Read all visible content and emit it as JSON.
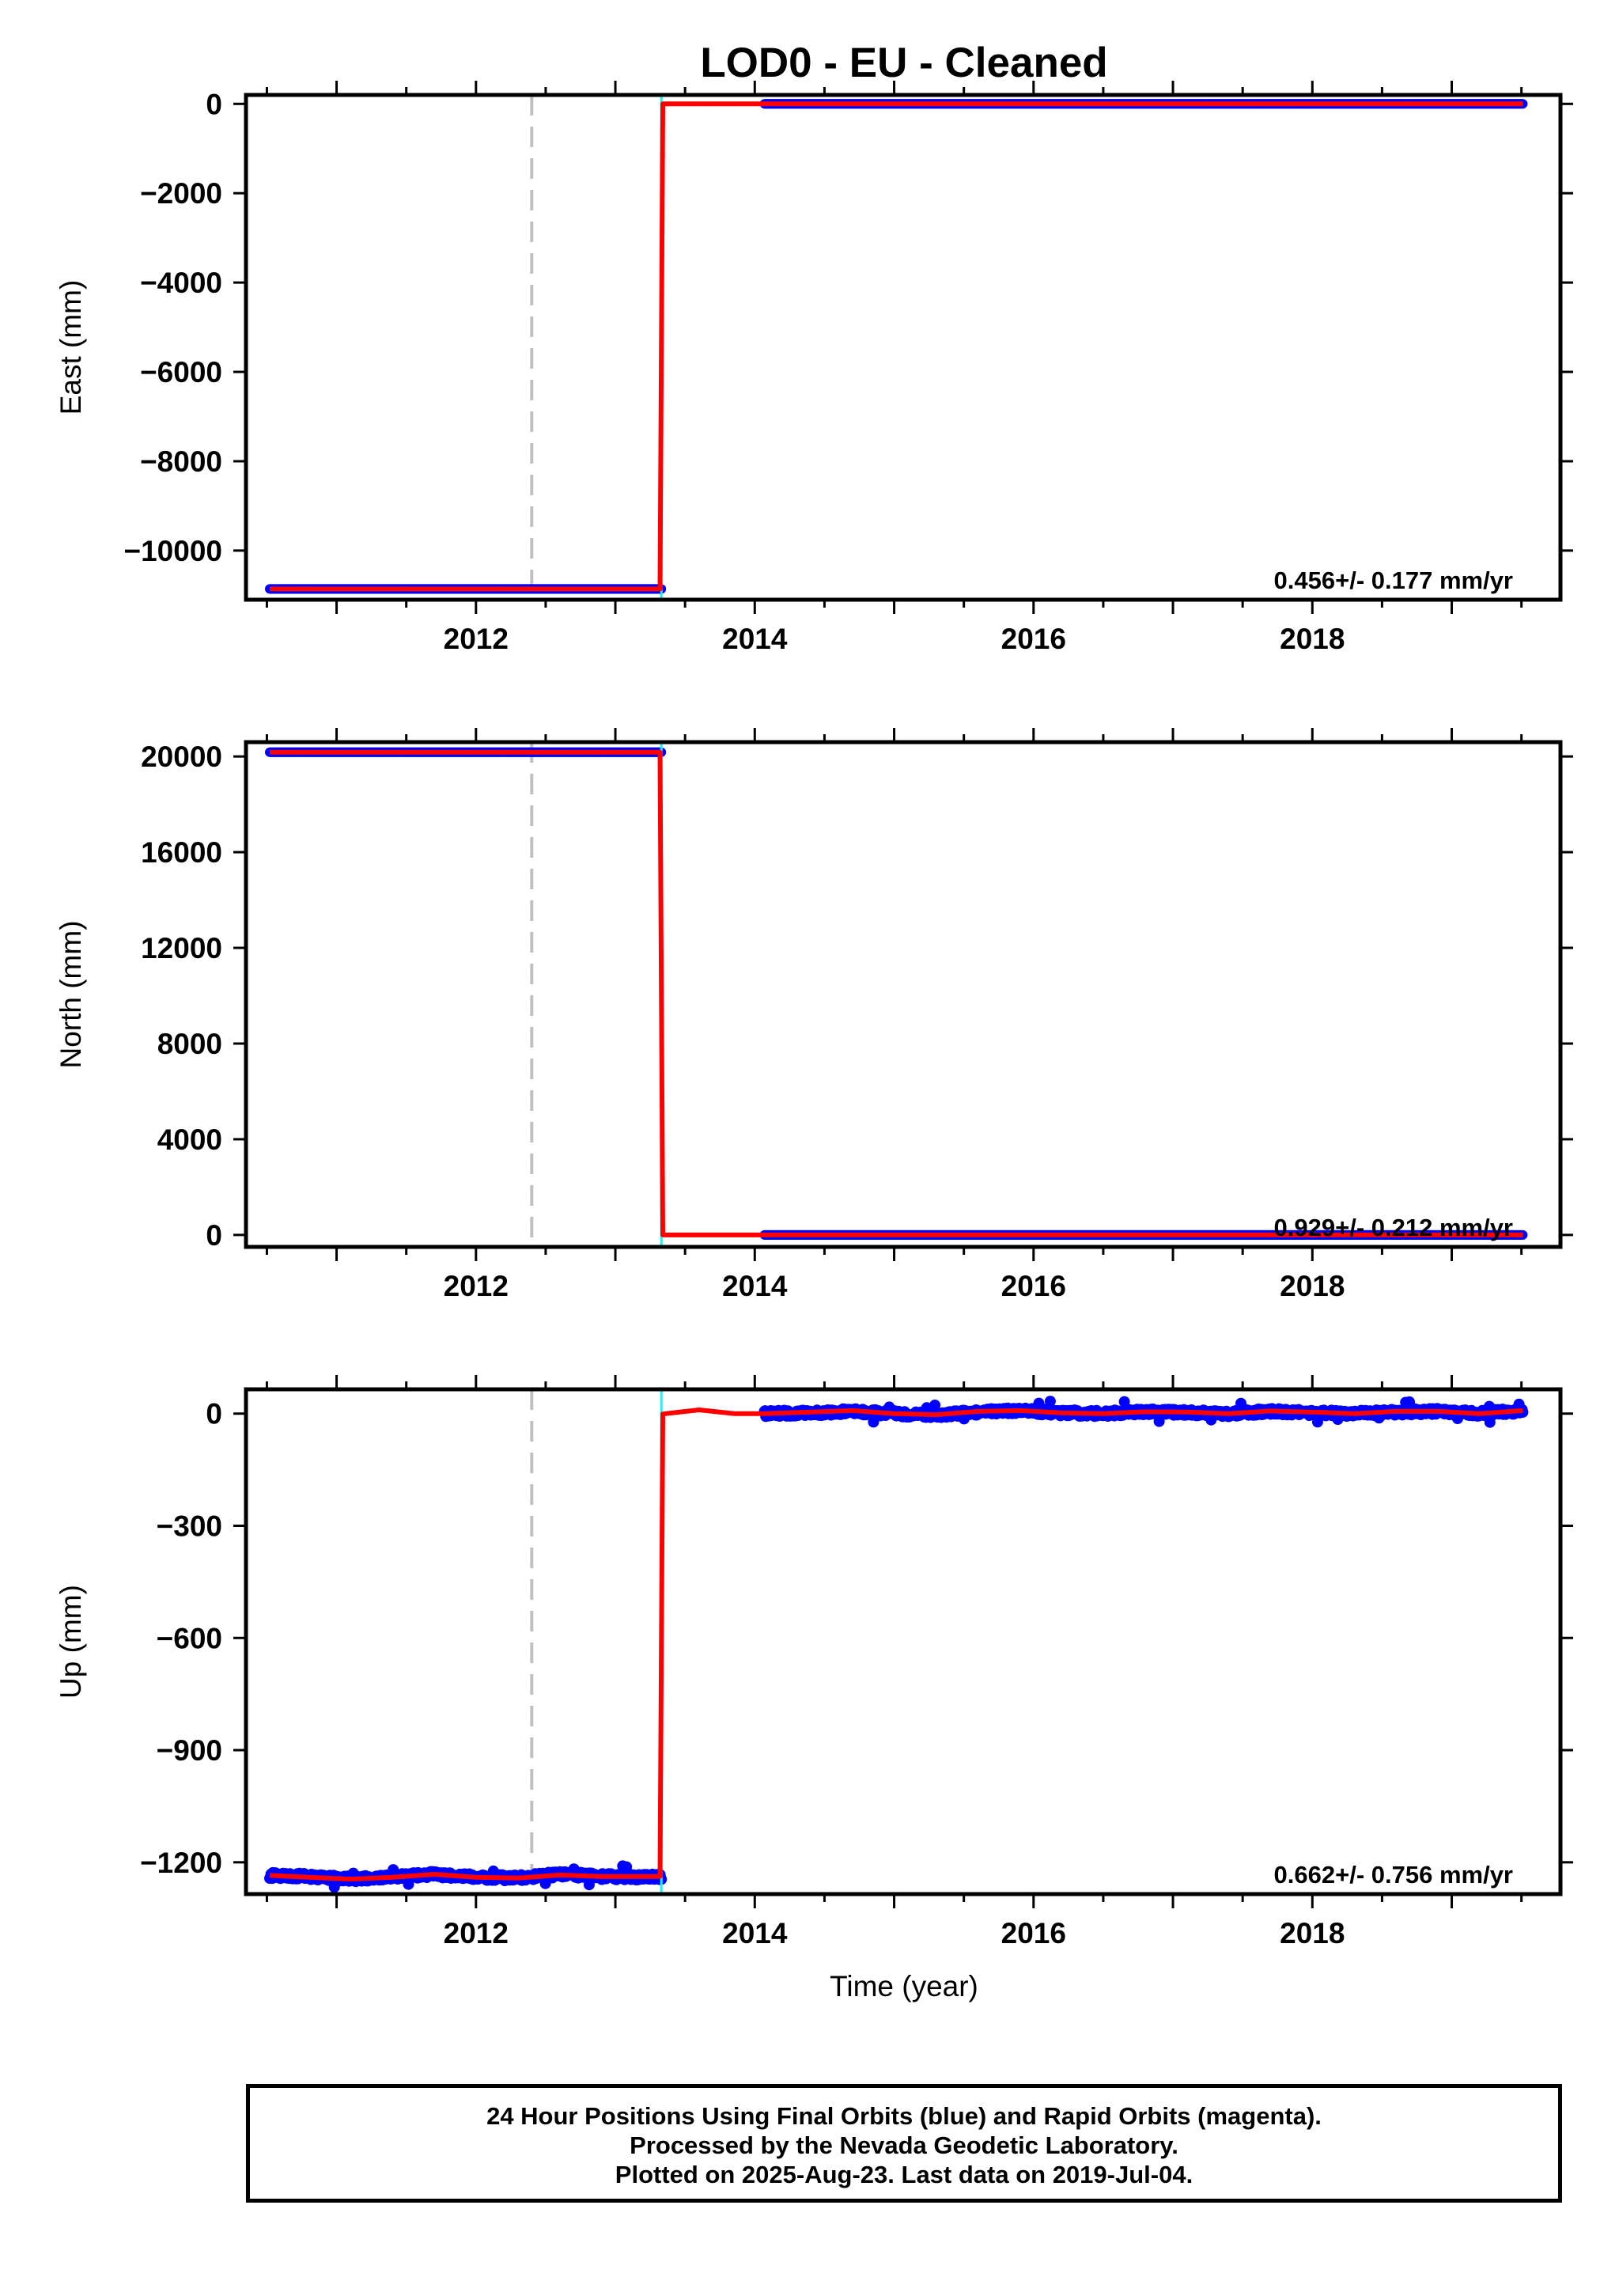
{
  "title": "LOD0  - EU - Cleaned",
  "xlabel": "Time (year)",
  "colors": {
    "final": "#0000ff",
    "rapid": "#ff00ff",
    "model": "#ff0000",
    "break": "#00ffff",
    "dashed": "#c0c0c0"
  },
  "footer": {
    "line1": "24 Hour Positions Using Final Orbits (blue) and Rapid Orbits (magenta).",
    "line2": "Processed by the Nevada Geodetic Laboratory.",
    "line3": "Plotted on 2025-Aug-23. Last data on 2019-Jul-04."
  },
  "chart_data": [
    {
      "type": "scatter",
      "ylabel": "East (mm)",
      "rate": "0.456+/- 0.177 mm/yr",
      "xlim": [
        2010.35,
        2019.78
      ],
      "ylim": [
        -11100,
        200
      ],
      "xticks": [
        2012,
        2014,
        2016,
        2018
      ],
      "yticks": [
        0,
        -2000,
        -4000,
        -6000,
        -8000,
        -10000
      ],
      "ytick_labels": [
        "0",
        "−2000",
        "−4000",
        "−6000",
        "−8000",
        "−10000"
      ],
      "dashed_line_x": 2012.4,
      "break_x": 2013.33,
      "series": [
        {
          "segments": [
            {
              "x": [
                2010.52,
                2013.33
              ],
              "y": [
                -10860,
                -10860
              ]
            },
            {
              "x": [
                2014.07,
                2019.51
              ],
              "y": [
                0,
                0
              ]
            }
          ]
        }
      ],
      "model": {
        "x": [
          2010.52,
          2013.32,
          2013.34,
          2019.51
        ],
        "y": [
          -10860,
          -10860,
          0,
          0
        ]
      }
    },
    {
      "type": "scatter",
      "ylabel": "North (mm)",
      "rate": "0.929+/- 0.212 mm/yr",
      "xlim": [
        2010.35,
        2019.78
      ],
      "ylim": [
        -500,
        20600
      ],
      "xticks": [
        2012,
        2014,
        2016,
        2018
      ],
      "yticks": [
        20000,
        16000,
        12000,
        8000,
        4000,
        0
      ],
      "ytick_labels": [
        "20000",
        "16000",
        "12000",
        "8000",
        "4000",
        "0"
      ],
      "dashed_line_x": 2012.4,
      "break_x": 2013.33,
      "series": [
        {
          "segments": [
            {
              "x": [
                2010.52,
                2013.33
              ],
              "y": [
                20180,
                20180
              ]
            },
            {
              "x": [
                2014.07,
                2019.51
              ],
              "y": [
                0,
                0
              ]
            }
          ]
        }
      ],
      "model": {
        "x": [
          2010.52,
          2013.32,
          2013.34,
          2019.51
        ],
        "y": [
          20180,
          20180,
          0,
          0
        ]
      }
    },
    {
      "type": "scatter",
      "ylabel": "Up (mm)",
      "rate": "0.662+/- 0.756 mm/yr",
      "xlim": [
        2010.35,
        2019.78
      ],
      "ylim": [
        -1285,
        65
      ],
      "xticks": [
        2012,
        2014,
        2016,
        2018
      ],
      "yticks": [
        0,
        -300,
        -600,
        -900,
        -1200
      ],
      "ytick_labels": [
        "0",
        "−300",
        "−600",
        "−900",
        "−1200"
      ],
      "dashed_line_x": 2012.4,
      "break_x": 2013.33,
      "series": [
        {
          "segments": [
            {
              "x": [
                2010.52,
                2010.8,
                2011.1,
                2011.4,
                2011.7,
                2012.0,
                2012.3,
                2012.6,
                2012.9,
                2013.33
              ],
              "y": [
                -1235,
                -1238,
                -1245,
                -1240,
                -1232,
                -1240,
                -1242,
                -1232,
                -1238,
                -1240
              ]
            },
            {
              "x": [
                2014.07,
                2014.4,
                2014.7,
                2015.0,
                2015.3,
                2015.6,
                2015.9,
                2016.2,
                2016.5,
                2016.8,
                2017.1,
                2017.4,
                2017.7,
                2018.0,
                2018.3,
                2018.6,
                2018.9,
                2019.2,
                2019.51
              ],
              "y": [
                0,
                2,
                6,
                0,
                -4,
                4,
                8,
                2,
                0,
                5,
                3,
                0,
                6,
                2,
                0,
                4,
                6,
                0,
                8
              ]
            }
          ]
        }
      ],
      "model": {
        "x": [
          2010.52,
          2010.8,
          2011.1,
          2011.4,
          2011.7,
          2012.0,
          2012.3,
          2012.6,
          2012.9,
          2013.32,
          2013.34,
          2013.6,
          2013.85,
          2014.07,
          2014.4,
          2014.7,
          2015.0,
          2015.3,
          2015.6,
          2015.9,
          2016.2,
          2016.5,
          2016.8,
          2017.1,
          2017.4,
          2017.7,
          2018.0,
          2018.3,
          2018.6,
          2018.9,
          2019.2,
          2019.51
        ],
        "y": [
          -1235,
          -1240,
          -1245,
          -1240,
          -1232,
          -1240,
          -1242,
          -1234,
          -1238,
          -1238,
          -1,
          10,
          0,
          0,
          4,
          8,
          0,
          -3,
          6,
          8,
          2,
          0,
          5,
          4,
          0,
          7,
          4,
          0,
          6,
          6,
          0,
          8
        ]
      }
    }
  ]
}
